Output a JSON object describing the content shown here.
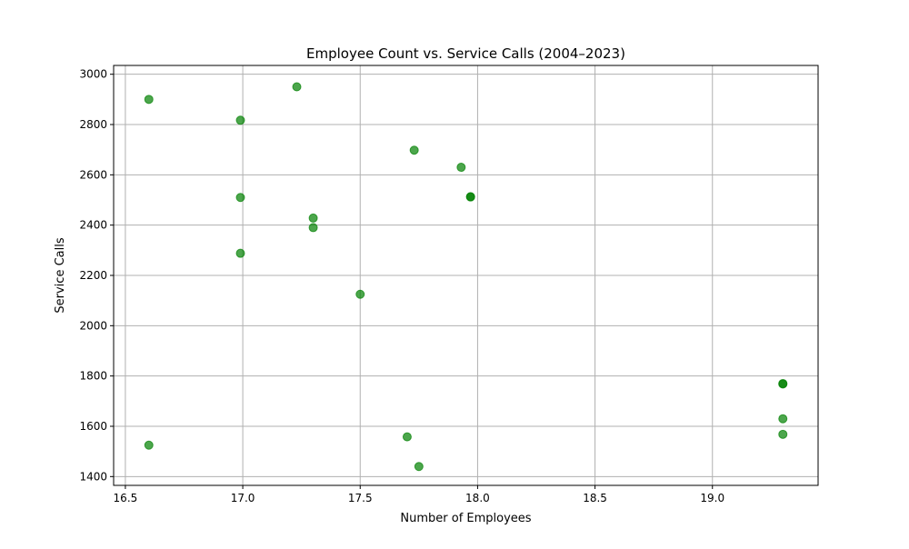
{
  "chart_data": {
    "type": "scatter",
    "title": "Employee Count vs. Service Calls (2004–2023)",
    "xlabel": "Number of Employees",
    "ylabel": "Service Calls",
    "xlim": [
      16.45,
      19.45
    ],
    "ylim": [
      1365,
      3035
    ],
    "x_ticks": [
      16.5,
      17.0,
      17.5,
      18.0,
      18.5,
      19.0
    ],
    "x_tick_labels": [
      "16.5",
      "17.0",
      "17.5",
      "18.0",
      "18.5",
      "19.0"
    ],
    "y_ticks": [
      1400,
      1600,
      1800,
      2000,
      2200,
      2400,
      2600,
      2800,
      3000
    ],
    "y_tick_labels": [
      "1400",
      "1600",
      "1800",
      "2000",
      "2200",
      "2400",
      "2600",
      "2800",
      "3000"
    ],
    "grid": true,
    "marker_color": "#008000",
    "marker_opacity": 0.7,
    "points": [
      {
        "x": 16.6,
        "y": 2900
      },
      {
        "x": 16.6,
        "y": 1525
      },
      {
        "x": 16.99,
        "y": 2817
      },
      {
        "x": 16.99,
        "y": 2510
      },
      {
        "x": 16.99,
        "y": 2288
      },
      {
        "x": 17.23,
        "y": 2950
      },
      {
        "x": 17.3,
        "y": 2428
      },
      {
        "x": 17.3,
        "y": 2390
      },
      {
        "x": 17.5,
        "y": 2125
      },
      {
        "x": 17.7,
        "y": 1558
      },
      {
        "x": 17.73,
        "y": 2698
      },
      {
        "x": 17.75,
        "y": 1440
      },
      {
        "x": 17.93,
        "y": 2630
      },
      {
        "x": 17.97,
        "y": 2512
      },
      {
        "x": 17.97,
        "y": 2513
      },
      {
        "x": 19.3,
        "y": 1768
      },
      {
        "x": 19.3,
        "y": 1770
      },
      {
        "x": 19.3,
        "y": 1630
      },
      {
        "x": 19.3,
        "y": 1568
      }
    ]
  }
}
